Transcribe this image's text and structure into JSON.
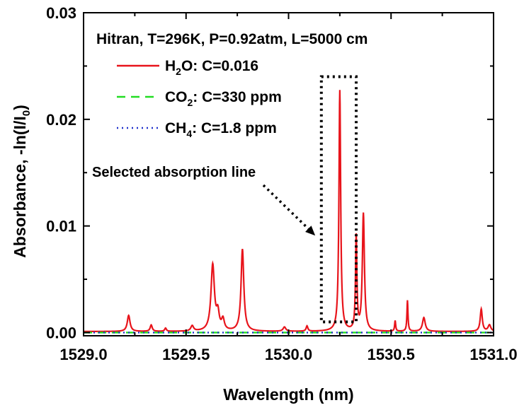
{
  "chart_data": {
    "type": "line",
    "title": "",
    "xlabel": "Wavelength (nm)",
    "ylabel": "Absorbance, -ln(I/I0)",
    "ylabel_parts": [
      "Absorbance, -ln(I/I",
      "0",
      ")"
    ],
    "xlim": [
      1529.0,
      1531.0
    ],
    "ylim": [
      -0.0003,
      0.03
    ],
    "x_ticks": [
      1529.0,
      1529.5,
      1530.0,
      1530.5,
      1531.0
    ],
    "x_tick_labels": [
      "1529.0",
      "1529.5",
      "1530.0",
      "1530.5",
      "1531.0"
    ],
    "y_ticks": [
      0.0,
      0.01,
      0.02,
      0.03
    ],
    "y_tick_labels": [
      "0.00",
      "0.01",
      "0.02",
      "0.03"
    ],
    "grid": false,
    "legend_position": "top-left",
    "legend_header": "Hitran, T=296K, P=0.92atm, L=5000 cm",
    "series": [
      {
        "name": "H2O: C=0.016",
        "legend_parts": [
          "H",
          "2",
          "O: C=0.016"
        ],
        "color": "#e8141b",
        "style": "solid",
        "baseline": 0.0001,
        "peaks": [
          {
            "x": 1529.22,
            "height": 0.0015,
            "width": 0.008
          },
          {
            "x": 1529.33,
            "height": 0.0006,
            "width": 0.006
          },
          {
            "x": 1529.4,
            "height": 0.0003,
            "width": 0.005
          },
          {
            "x": 1529.53,
            "height": 0.0005,
            "width": 0.008
          },
          {
            "x": 1529.63,
            "height": 0.0062,
            "width": 0.01
          },
          {
            "x": 1529.655,
            "height": 0.0015,
            "width": 0.008
          },
          {
            "x": 1529.68,
            "height": 0.001,
            "width": 0.008
          },
          {
            "x": 1529.775,
            "height": 0.0077,
            "width": 0.008
          },
          {
            "x": 1529.98,
            "height": 0.0004,
            "width": 0.008
          },
          {
            "x": 1530.09,
            "height": 0.0005,
            "width": 0.005
          },
          {
            "x": 1530.25,
            "height": 0.0226,
            "width": 0.005
          },
          {
            "x": 1530.33,
            "height": 0.0088,
            "width": 0.004
          },
          {
            "x": 1530.365,
            "height": 0.011,
            "width": 0.006
          },
          {
            "x": 1530.52,
            "height": 0.001,
            "width": 0.003
          },
          {
            "x": 1530.58,
            "height": 0.0029,
            "width": 0.003
          },
          {
            "x": 1530.66,
            "height": 0.0013,
            "width": 0.008
          },
          {
            "x": 1530.94,
            "height": 0.0021,
            "width": 0.006
          },
          {
            "x": 1530.98,
            "height": 0.0006,
            "width": 0.008
          }
        ]
      },
      {
        "name": "CO2: C=330 ppm",
        "legend_parts": [
          "CO",
          "2",
          ": C=330 ppm"
        ],
        "color": "#22dd22",
        "style": "dash",
        "x": [
          1529.0,
          1531.0
        ],
        "values": [
          0.0,
          0.0
        ]
      },
      {
        "name": "CH4: C=1.8 ppm",
        "legend_parts": [
          "CH",
          "4",
          ": C=1.8 ppm"
        ],
        "color": "#2233cc",
        "style": "dot",
        "x": [
          1529.0,
          1531.0
        ],
        "values": [
          0.0,
          0.0
        ]
      }
    ],
    "annotation": {
      "text": "Selected absorption line",
      "box_x": [
        1530.16,
        1530.33
      ],
      "box_y": [
        0.001,
        0.024
      ],
      "arrow_to": [
        1530.13,
        0.0091
      ]
    }
  }
}
